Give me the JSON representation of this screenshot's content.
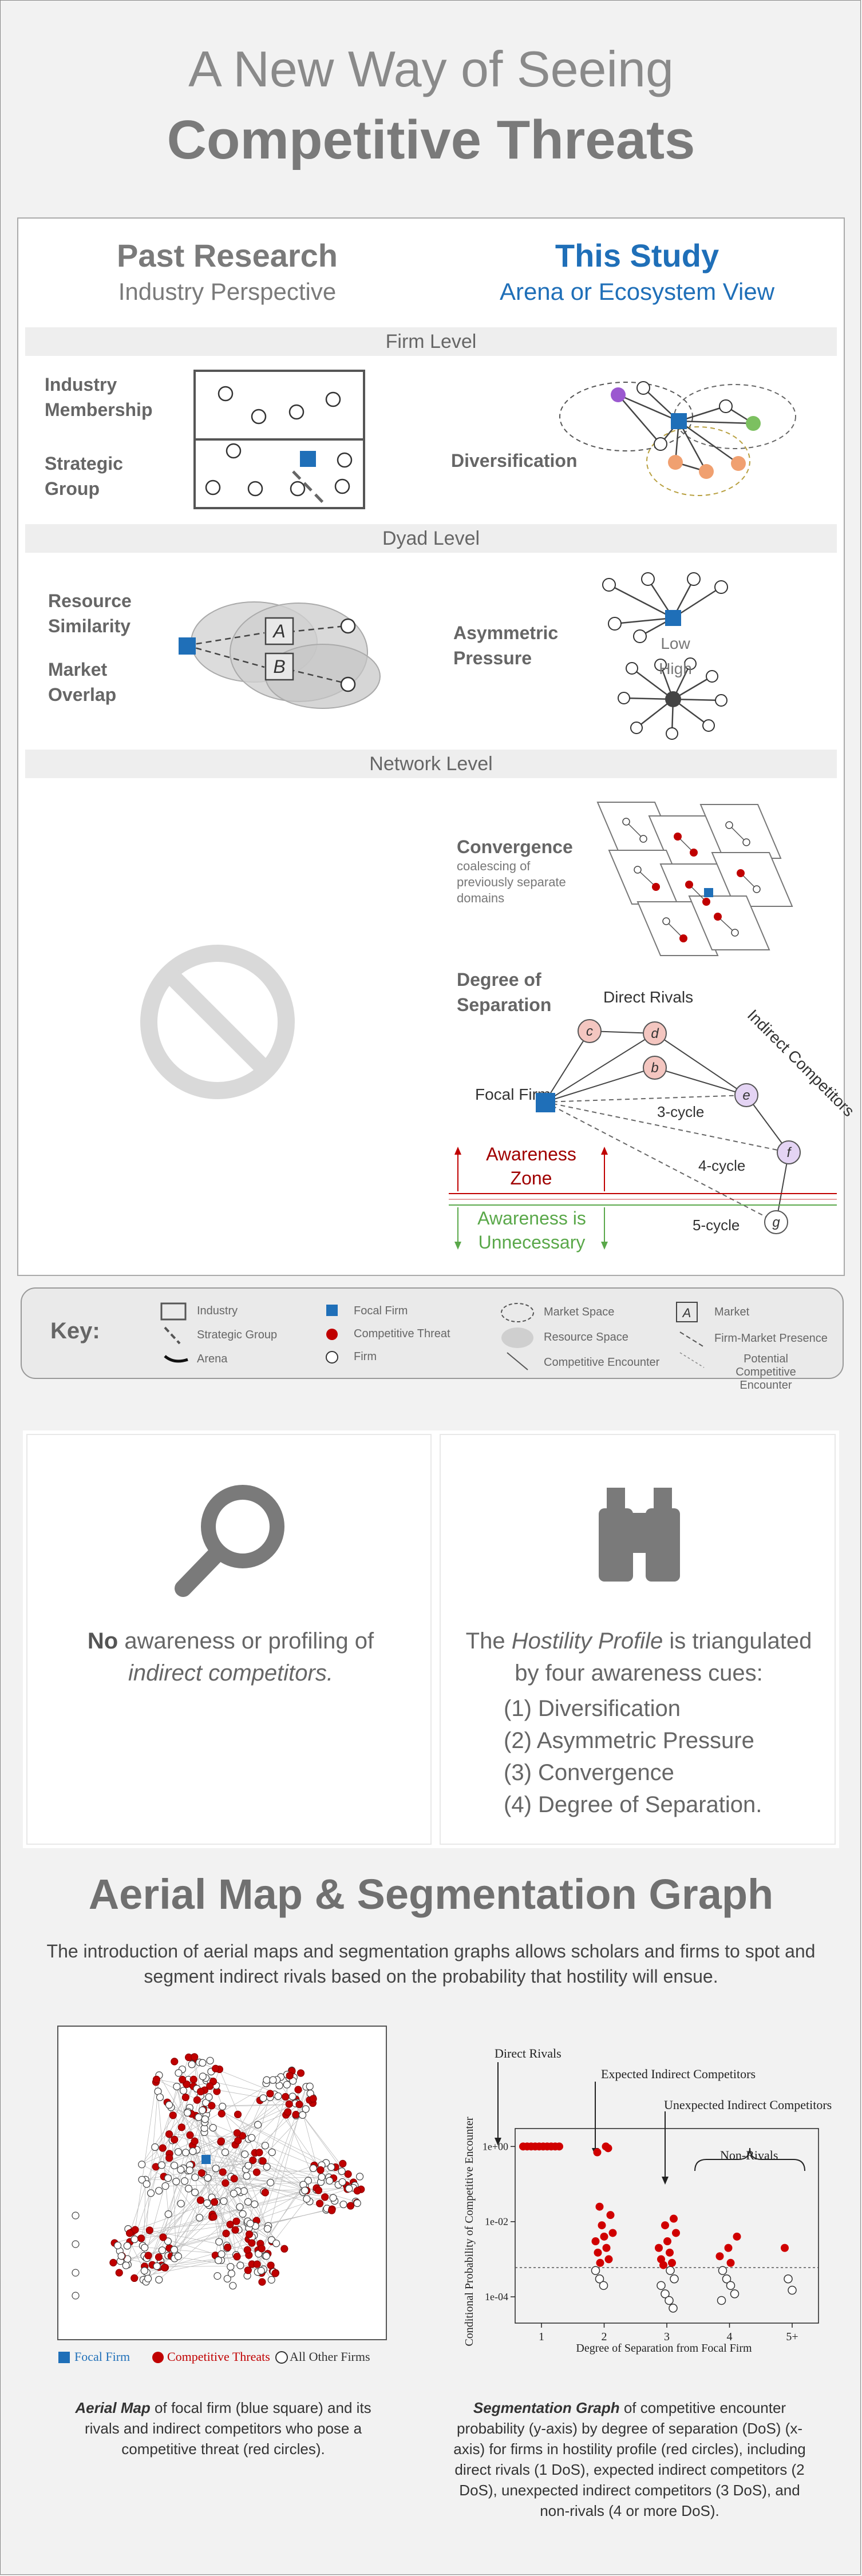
{
  "header": {
    "line1": "A New Way of Seeing",
    "line2": "Competitive Threats"
  },
  "columns": {
    "left": {
      "title": "Past Research",
      "subtitle": "Industry Perspective"
    },
    "right": {
      "title": "This Study",
      "subtitle": "Arena or Ecosystem View"
    }
  },
  "colors": {
    "accent": "#1f6fb8",
    "threat": "#c00000",
    "gray": "#666666"
  },
  "levels": {
    "firm": "Firm Level",
    "dyad": "Dyad Level",
    "network": "Network Level"
  },
  "firm_level": {
    "industry_membership": "Industry Membership",
    "strategic_group": "Strategic Group",
    "diversification": "Diversification"
  },
  "dyad_level": {
    "resource_similarity": "Resource Similarity",
    "market_overlap": "Market Overlap",
    "market_a": "A",
    "market_b": "B",
    "asymmetric_pressure": "Asymmetric Pressure",
    "low": "Low",
    "high": "High"
  },
  "network_level": {
    "not_applicable_icon": "prohibited-icon",
    "convergence_title": "Convergence",
    "convergence_desc": "coalescing of previously separate domains",
    "dos_title": "Degree of Separation",
    "direct_rivals": "Direct Rivals",
    "indirect_competitors": "Indirect Competitors",
    "focal_firm": "Focal Firm",
    "nodes": [
      "c",
      "d",
      "b",
      "e",
      "f",
      "g"
    ],
    "cycles": [
      "3-cycle",
      "4-cycle",
      "5-cycle"
    ],
    "awareness_zone": "Awareness Zone",
    "awareness_unnecessary": "Awareness is Unnecessary"
  },
  "key": {
    "title": "Key:",
    "items": [
      "Industry",
      "Strategic Group",
      "Arena",
      "Focal Firm",
      "Competitive Threat",
      "Firm",
      "Market Space",
      "Resource Space",
      "Competitive Encounter",
      "Market",
      "Firm-Market Presence",
      "Potential Competitive Encounter"
    ],
    "market_letter": "A"
  },
  "awareness": {
    "left_icon": "magnifier-icon",
    "left_bold": "No",
    "left_text": " awareness or profiling of ",
    "left_em": "indirect competitors.",
    "right_icon": "binoculars-icon",
    "right_pre": "The ",
    "right_em": "Hostility Profile",
    "right_post": " is triangulated by four awareness cues:",
    "cues": [
      "(1) Diversification",
      "(2) Asymmetric Pressure",
      "(3) Convergence",
      "(4) Degree of Separation."
    ]
  },
  "aerial": {
    "title": "Aerial Map & Segmentation Graph",
    "intro": "The introduction of aerial maps and segmentation graphs allows scholars and firms to spot and segment indirect rivals based on the probability that hostility will ensue.",
    "legend": [
      "Focal Firm",
      "Competitive Threats",
      "All Other Firms"
    ],
    "caption_left_em": "Aerial Map",
    "caption_left": " of focal firm (blue square) and its rivals and indirect competitors who pose a competitive threat (red circles).",
    "caption_right_em": "Segmentation Graph",
    "caption_right": " of competitive encounter probability (y-axis) by degree of separation (DoS) (x-axis) for firms in hostility profile (red circles), including direct rivals (1 DoS), expected indirect competitors (2 DoS), unexpected indirect competitors (3 DoS), and non-rivals (4 or more DoS)."
  },
  "chart_data": {
    "type": "scatter",
    "title": "",
    "xlabel": "Degree of Separation from Focal Firm",
    "ylabel": "Conditional Probability of Competitive Encounter",
    "x_ticks": [
      "1",
      "2",
      "3",
      "4",
      "5+"
    ],
    "y_ticks": [
      "1e+00",
      "1e-02",
      "1e-04"
    ],
    "y_scale": "log",
    "ylim": [
      2e-05,
      3
    ],
    "threshold": 0.0006,
    "annotations": [
      "Direct Rivals",
      "Expected Indirect Competitors",
      "Unexpected Indirect Competitors",
      "Non-Rivals"
    ],
    "series": [
      {
        "name": "Competitive Threats",
        "points": [
          [
            1,
            1.0
          ],
          [
            1,
            1.0
          ],
          [
            1,
            1.0
          ],
          [
            1,
            1.0
          ],
          [
            1,
            1.0
          ],
          [
            1,
            1.0
          ],
          [
            1,
            1.0
          ],
          [
            1,
            1.0
          ],
          [
            1,
            1.0
          ],
          [
            1,
            1.0
          ],
          [
            2,
            1.0
          ],
          [
            2,
            0.7
          ],
          [
            2,
            0.9
          ],
          [
            2,
            0.025
          ],
          [
            2,
            0.015
          ],
          [
            2,
            0.008
          ],
          [
            2,
            0.005
          ],
          [
            2,
            0.004
          ],
          [
            2,
            0.003
          ],
          [
            2,
            0.002
          ],
          [
            2,
            0.0015
          ],
          [
            2,
            0.001
          ],
          [
            2,
            0.0008
          ],
          [
            3,
            0.012
          ],
          [
            3,
            0.008
          ],
          [
            3,
            0.005
          ],
          [
            3,
            0.003
          ],
          [
            3,
            0.002
          ],
          [
            3,
            0.0015
          ],
          [
            3,
            0.001
          ],
          [
            3,
            0.0008
          ],
          [
            3,
            0.0007
          ],
          [
            4,
            0.004
          ],
          [
            4,
            0.002
          ],
          [
            4,
            0.0012
          ],
          [
            4,
            0.0008
          ],
          [
            5,
            0.002
          ]
        ]
      },
      {
        "name": "All Other Firms",
        "points": [
          [
            2,
            0.0005
          ],
          [
            2,
            0.0003
          ],
          [
            2,
            0.0002
          ],
          [
            3,
            0.0005
          ],
          [
            3,
            0.0003
          ],
          [
            3,
            0.0002
          ],
          [
            3,
            0.00012
          ],
          [
            3,
            8e-05
          ],
          [
            3,
            5e-05
          ],
          [
            4,
            0.0005
          ],
          [
            4,
            0.0003
          ],
          [
            4,
            0.0002
          ],
          [
            4,
            0.00012
          ],
          [
            4,
            8e-05
          ],
          [
            5,
            0.0003
          ],
          [
            5,
            0.00015
          ]
        ]
      }
    ]
  }
}
